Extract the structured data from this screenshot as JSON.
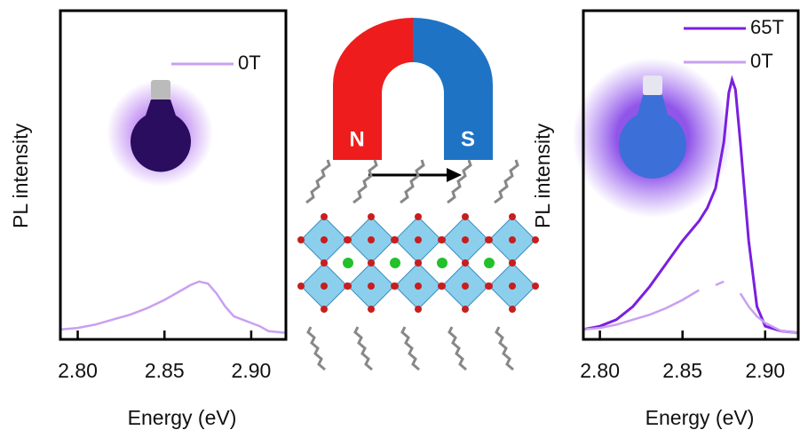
{
  "chart_data": [
    {
      "type": "line",
      "xlabel": "Energy (eV)",
      "ylabel": "PL intensity",
      "xlim": [
        2.79,
        2.92
      ],
      "ylim": [
        0,
        1
      ],
      "xticks": [
        {
          "value": 2.8,
          "label": "2.80"
        },
        {
          "value": 2.85,
          "label": "2.85"
        },
        {
          "value": 2.9,
          "label": "2.90"
        }
      ],
      "x": [
        2.79,
        2.8,
        2.81,
        2.82,
        2.83,
        2.84,
        2.85,
        2.86,
        2.865,
        2.87,
        2.875,
        2.88,
        2.885,
        2.89,
        2.895,
        2.9,
        2.905,
        2.91,
        2.92
      ],
      "series": [
        {
          "name": "0T",
          "color": "#c9a0f0",
          "values": [
            0.03,
            0.035,
            0.045,
            0.06,
            0.075,
            0.095,
            0.12,
            0.15,
            0.165,
            0.176,
            0.17,
            0.14,
            0.1,
            0.07,
            0.06,
            0.05,
            0.04,
            0.025,
            0.02
          ]
        }
      ]
    },
    {
      "type": "line",
      "xlabel": "Energy (eV)",
      "ylabel": "PL intensity",
      "xlim": [
        2.79,
        2.92
      ],
      "ylim": [
        0,
        1
      ],
      "xticks": [
        {
          "value": 2.8,
          "label": "2.80"
        },
        {
          "value": 2.85,
          "label": "2.85"
        },
        {
          "value": 2.9,
          "label": "2.90"
        }
      ],
      "x": [
        2.79,
        2.8,
        2.81,
        2.82,
        2.83,
        2.84,
        2.85,
        2.86,
        2.865,
        2.87,
        2.875,
        2.878,
        2.88,
        2.882,
        2.885,
        2.89,
        2.895,
        2.9,
        2.91,
        2.92
      ],
      "series": [
        {
          "name": "65T",
          "color": "#7a1fe0",
          "values": [
            0.03,
            0.04,
            0.06,
            0.1,
            0.16,
            0.23,
            0.3,
            0.36,
            0.4,
            0.46,
            0.6,
            0.75,
            0.79,
            0.76,
            0.6,
            0.3,
            0.1,
            0.04,
            0.025,
            0.02
          ]
        },
        {
          "name": "0T",
          "color": "#c9a0f0",
          "values": [
            0.03,
            0.035,
            0.045,
            0.06,
            0.075,
            0.095,
            0.12,
            0.15,
            null,
            0.165,
            0.176,
            null,
            0.17,
            null,
            0.14,
            0.1,
            0.07,
            0.05,
            0.025,
            0.02
          ]
        }
      ]
    }
  ],
  "illustration": {
    "north": "N",
    "south": "S"
  }
}
